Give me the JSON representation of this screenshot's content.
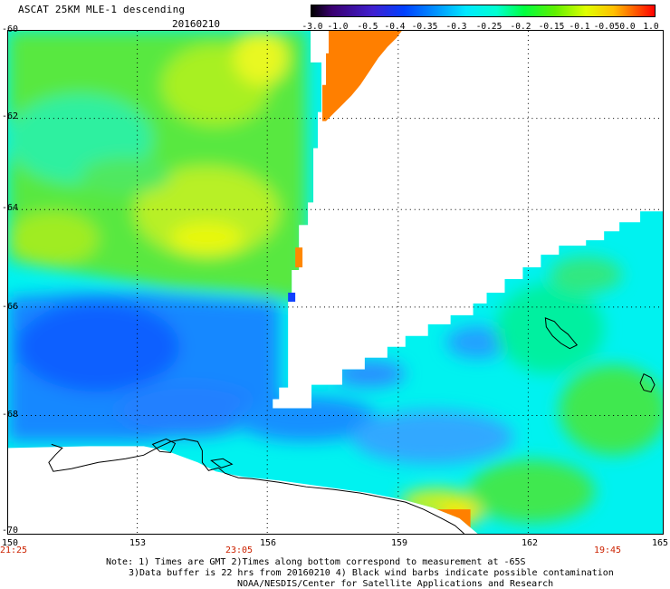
{
  "header": {
    "title": "ASCAT 25KM MLE-1 descending",
    "date": "20160210"
  },
  "colorbar": {
    "labels": [
      "-3.0",
      "-1.0",
      "-0.5",
      "-0.4",
      "-0.35",
      "-0.3",
      "-0.25",
      "-0.2",
      "-0.15",
      "-0.1",
      "-0.05",
      "0.0",
      "1.0"
    ],
    "colors": [
      "#000000",
      "#4b0082",
      "#2030ff",
      "#0070ff",
      "#00c0ff",
      "#00ffff",
      "#00ff80",
      "#00e000",
      "#80e000",
      "#ffff00",
      "#ffa000",
      "#ff0000"
    ]
  },
  "axes": {
    "lat_labels": [
      "-60",
      "-62",
      "-64",
      "-66",
      "-68",
      "-70"
    ],
    "lon_labels": [
      "150",
      "153",
      "156",
      "159",
      "162",
      "165"
    ]
  },
  "pass_times": [
    "21:25",
    "23:05",
    "19:45"
  ],
  "notes": {
    "line1": "Note: 1) Times are GMT 2)Times along bottom correspond to measurement at -65S",
    "line2": "3)Data buffer is 22 hrs from 20160210 4) Black wind barbs indicate possible contamination",
    "line3": "NOAA/NESDIS/Center for Satellite Applications and Research"
  }
}
